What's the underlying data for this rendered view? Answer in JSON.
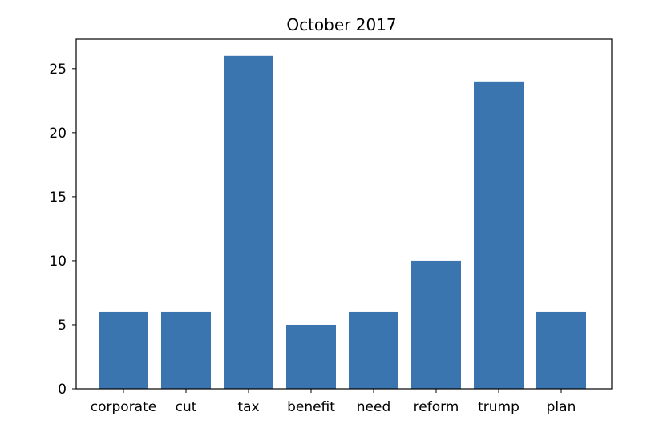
{
  "chart_data": {
    "type": "bar",
    "title": "October 2017",
    "xlabel": "",
    "ylabel": "",
    "categories": [
      "corporate",
      "cut",
      "tax",
      "benefit",
      "need",
      "reform",
      "trump",
      "plan"
    ],
    "values": [
      6,
      6,
      26,
      5,
      6,
      10,
      24,
      6
    ],
    "ylim": [
      0,
      27.3
    ],
    "yticks": [
      "0",
      "5",
      "10",
      "15",
      "20",
      "25"
    ],
    "grid": false,
    "bar_color": "#3a75af",
    "axis_color": "#000000"
  }
}
